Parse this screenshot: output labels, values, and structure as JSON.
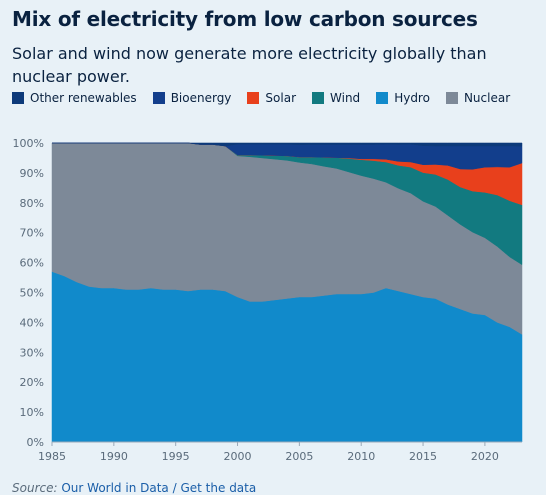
{
  "header": {
    "title": "Mix of electricity from low carbon sources",
    "subtitle": "Solar and wind now generate more electricity globally than nuclear power."
  },
  "legend": [
    {
      "name": "Other renewables",
      "color": "#0d3a7a"
    },
    {
      "name": "Bioenergy",
      "color": "#123e8c"
    },
    {
      "name": "Solar",
      "color": "#e8401c"
    },
    {
      "name": "Wind",
      "color": "#127a80"
    },
    {
      "name": "Hydro",
      "color": "#118acb"
    },
    {
      "name": "Nuclear",
      "color": "#7d8998"
    }
  ],
  "source": {
    "label": "Source:",
    "link1": "Our World in Data",
    "separator": "/",
    "link2": "Get the data"
  },
  "chart_data": {
    "type": "area",
    "stacked": true,
    "normalized": true,
    "x": [
      1985,
      1986,
      1987,
      1988,
      1989,
      1990,
      1991,
      1992,
      1993,
      1994,
      1995,
      1996,
      1997,
      1998,
      1999,
      2000,
      2001,
      2002,
      2003,
      2004,
      2005,
      2006,
      2007,
      2008,
      2009,
      2010,
      2011,
      2012,
      2013,
      2014,
      2015,
      2016,
      2017,
      2018,
      2019,
      2020,
      2021,
      2022,
      2023
    ],
    "xticks": [
      1985,
      1990,
      1995,
      2000,
      2005,
      2010,
      2015,
      2020
    ],
    "yticks": [
      "0%",
      "10%",
      "20%",
      "30%",
      "40%",
      "50%",
      "60%",
      "70%",
      "80%",
      "90%",
      "100%"
    ],
    "ylim": [
      0,
      100
    ],
    "grid": true,
    "series": [
      {
        "name": "Hydro",
        "color": "#118acb",
        "values": [
          57,
          55.5,
          53.5,
          52,
          51.5,
          51.5,
          51,
          51,
          51.5,
          51,
          51,
          50.5,
          51,
          51,
          50.5,
          48.5,
          47,
          47,
          47.5,
          48,
          48.5,
          48.5,
          49,
          49.5,
          49.5,
          49.5,
          50,
          51,
          50,
          49,
          48,
          47.5,
          46,
          44.5,
          43,
          42.5,
          40,
          38.5,
          36
        ]
      },
      {
        "name": "Nuclear",
        "color": "#7d8998",
        "values": [
          43,
          44.5,
          46.5,
          48,
          48.5,
          48.5,
          49,
          49,
          48.5,
          49,
          49,
          49.5,
          48.5,
          48.5,
          48.5,
          47.2,
          48.4,
          48,
          47.1,
          46.2,
          45,
          44.5,
          43.2,
          42,
          40.8,
          39.6,
          38.1,
          35,
          34,
          33.4,
          31.7,
          30.5,
          29.8,
          28.3,
          27.2,
          25.8,
          25.4,
          23.4,
          23.3
        ]
      },
      {
        "name": "Wind",
        "color": "#127a80",
        "values": [
          0,
          0,
          0,
          0,
          0,
          0,
          0,
          0,
          0,
          0,
          0,
          0,
          0,
          0,
          0,
          0.3,
          0.6,
          0.9,
          1.2,
          1.5,
          1.8,
          2.3,
          3,
          3.6,
          4.5,
          5.3,
          6,
          6.7,
          7.6,
          8.6,
          9.5,
          10.6,
          12,
          12.5,
          13.7,
          15.2,
          17.2,
          18.8,
          20
        ]
      },
      {
        "name": "Solar",
        "color": "#e8401c",
        "values": [
          0,
          0,
          0,
          0,
          0,
          0,
          0,
          0,
          0,
          0,
          0,
          0,
          0,
          0,
          0,
          0,
          0,
          0,
          0,
          0,
          0,
          0,
          0,
          0,
          0.2,
          0.3,
          0.6,
          0.9,
          1.3,
          1.7,
          2.6,
          3.3,
          4.7,
          6,
          7.3,
          8.4,
          9.4,
          11.2,
          14
        ]
      },
      {
        "name": "Bioenergy",
        "color": "#123e8c",
        "values": [
          0,
          0,
          0,
          0,
          0,
          0,
          0,
          0,
          0,
          0,
          0,
          0,
          0,
          0,
          0,
          3.6,
          3.6,
          3.7,
          3.8,
          3.9,
          4.1,
          4.2,
          4.3,
          4.4,
          4.5,
          4.8,
          4.8,
          5,
          5.6,
          5.9,
          6.3,
          6.1,
          6.5,
          7.7,
          7.8,
          7.1,
          7,
          7.1,
          5.6
        ]
      },
      {
        "name": "Other renewables",
        "color": "#0d3a7a",
        "values": [
          0,
          0,
          0,
          0,
          0,
          0,
          0,
          0,
          0,
          0,
          0,
          0,
          0.5,
          0.5,
          1,
          0.4,
          0.4,
          0.4,
          0.4,
          0.4,
          0.6,
          0.5,
          0.5,
          0.5,
          0.5,
          0.5,
          0.5,
          0.4,
          0.5,
          0.4,
          0.9,
          1,
          1,
          1,
          1,
          1,
          1,
          1,
          1.1
        ]
      }
    ]
  }
}
